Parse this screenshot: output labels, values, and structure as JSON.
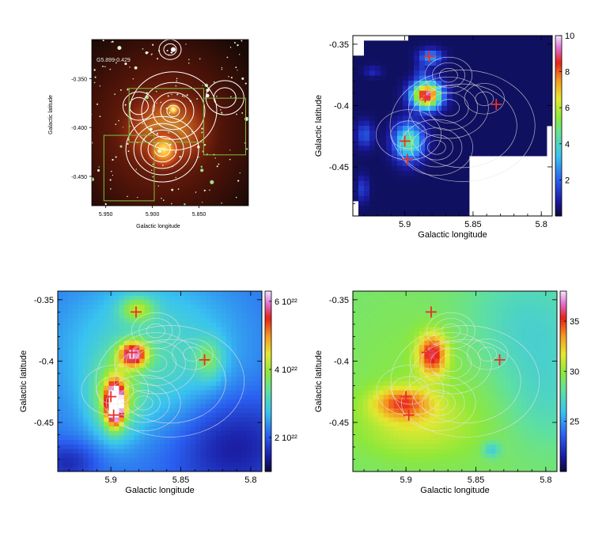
{
  "chart_data": [
    {
      "type": "heatmap",
      "panel": "top-left",
      "description_label": "G5.899-0.429",
      "xlabel": "Galactic longitude",
      "ylabel": "Galactic latitude",
      "xlim": [
        5.965,
        5.797
      ],
      "ylim": [
        -0.48,
        -0.31
      ],
      "x_ticks": [
        "5.950",
        "5.900",
        "5.850"
      ],
      "x_tick_values": [
        5.95,
        5.9,
        5.85
      ],
      "y_ticks": [
        "-0.350",
        "-0.400",
        "-0.450"
      ],
      "y_tick_values": [
        -0.35,
        -0.4,
        -0.45
      ],
      "image_colors": [
        "#2a0a05",
        "#c0441a",
        "#ffd23a"
      ],
      "box_color": "#7fbf3f",
      "boxes": [
        [
          5.925,
          -0.36,
          5.845,
          -0.415
        ],
        [
          5.845,
          -0.37,
          5.8,
          -0.428
        ],
        [
          5.952,
          -0.408,
          5.898,
          -0.475
        ]
      ]
    },
    {
      "type": "heatmap",
      "panel": "top-right",
      "xlabel": "Galactic longitude",
      "ylabel": "Galactic latitude",
      "xlim": [
        5.938,
        5.792
      ],
      "ylim": [
        -0.49,
        -0.343
      ],
      "x_ticks": [
        "5.9",
        "5.85",
        "5.8"
      ],
      "x_tick_values": [
        5.9,
        5.85,
        5.8
      ],
      "y_ticks": [
        "-0.35",
        "-0.4",
        "-0.45"
      ],
      "y_tick_values": [
        -0.35,
        -0.4,
        -0.45
      ],
      "colorbar_range": [
        0,
        10
      ],
      "colorbar_ticks": [
        "2",
        "4",
        "6",
        "8",
        "10"
      ],
      "colorbar_tick_values": [
        2,
        4,
        6,
        8,
        10
      ],
      "markers": [
        [
          5.882,
          -0.36
        ],
        [
          5.885,
          -0.393
        ],
        [
          5.833,
          -0.399
        ],
        [
          5.9,
          -0.429
        ],
        [
          5.898,
          -0.444
        ]
      ],
      "marker_color": "#e8302a"
    },
    {
      "type": "heatmap",
      "panel": "bottom-left",
      "xlabel": "Galactic longitude",
      "ylabel": "Galactic latitude",
      "xlim": [
        5.938,
        5.792
      ],
      "ylim": [
        -0.49,
        -0.343
      ],
      "x_ticks": [
        "5.9",
        "5.85",
        "5.8"
      ],
      "x_tick_values": [
        5.9,
        5.85,
        5.8
      ],
      "y_ticks": [
        "-0.35",
        "-0.4",
        "-0.45"
      ],
      "y_tick_values": [
        -0.35,
        -0.4,
        -0.45
      ],
      "colorbar_range": [
        1e+22,
        6.3e+22
      ],
      "colorbar_ticks": [
        "2 10²²",
        "4 10²²",
        "6 10²²"
      ],
      "colorbar_tick_values": [
        2e+22,
        4e+22,
        6e+22
      ],
      "markers": [
        [
          5.882,
          -0.36
        ],
        [
          5.885,
          -0.393
        ],
        [
          5.833,
          -0.399
        ],
        [
          5.9,
          -0.429
        ],
        [
          5.898,
          -0.444
        ]
      ],
      "marker_color": "#e8302a"
    },
    {
      "type": "heatmap",
      "panel": "bottom-right",
      "xlabel": "Galactic longitude",
      "ylabel": "Galactic latitude",
      "xlim": [
        5.938,
        5.792
      ],
      "ylim": [
        -0.49,
        -0.343
      ],
      "x_ticks": [
        "5.9",
        "5.85",
        "5.8"
      ],
      "x_tick_values": [
        5.9,
        5.85,
        5.8
      ],
      "y_ticks": [
        "-0.35",
        "-0.4",
        "-0.45"
      ],
      "y_tick_values": [
        -0.35,
        -0.4,
        -0.45
      ],
      "colorbar_range": [
        20,
        38
      ],
      "colorbar_ticks": [
        "25",
        "30",
        "35"
      ],
      "colorbar_tick_values": [
        25,
        30,
        35
      ],
      "markers": [
        [
          5.882,
          -0.36
        ],
        [
          5.885,
          -0.393
        ],
        [
          5.833,
          -0.399
        ],
        [
          5.9,
          -0.429
        ],
        [
          5.898,
          -0.444
        ]
      ],
      "marker_color": "#e8302a"
    }
  ]
}
